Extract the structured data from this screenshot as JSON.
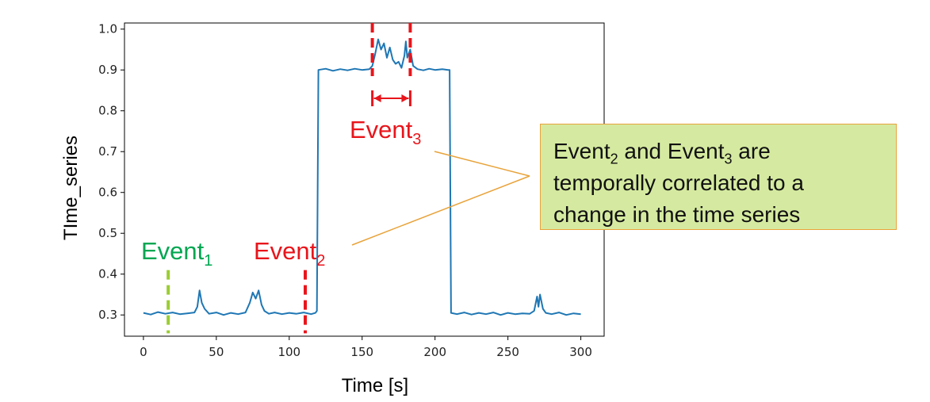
{
  "chart_data": {
    "type": "line",
    "xlabel": "Time [s]",
    "ylabel": "TIme_series",
    "xlim": [
      -13,
      316
    ],
    "ylim": [
      0.248,
      1.015
    ],
    "xticks": [
      0,
      50,
      100,
      150,
      200,
      250,
      300
    ],
    "yticks": [
      0.3,
      0.4,
      0.5,
      0.6,
      0.7,
      0.8,
      0.9,
      1.0
    ],
    "xtick_labels": [
      "0",
      "50",
      "100",
      "150",
      "200",
      "250",
      "300"
    ],
    "ytick_labels": [
      "0.3",
      "0.4",
      "0.5",
      "0.6",
      "0.7",
      "0.8",
      "0.9",
      "1.0"
    ],
    "series": [
      {
        "color": "#1f77b4",
        "points": [
          [
            0,
            0.305
          ],
          [
            5,
            0.301
          ],
          [
            10,
            0.307
          ],
          [
            15,
            0.303
          ],
          [
            20,
            0.306
          ],
          [
            25,
            0.302
          ],
          [
            30,
            0.304
          ],
          [
            35,
            0.306
          ],
          [
            37,
            0.32
          ],
          [
            38.5,
            0.36
          ],
          [
            40,
            0.33
          ],
          [
            42,
            0.315
          ],
          [
            45,
            0.303
          ],
          [
            50,
            0.306
          ],
          [
            55,
            0.3
          ],
          [
            60,
            0.305
          ],
          [
            65,
            0.302
          ],
          [
            70,
            0.306
          ],
          [
            73,
            0.33
          ],
          [
            75,
            0.355
          ],
          [
            77,
            0.34
          ],
          [
            79,
            0.36
          ],
          [
            81,
            0.325
          ],
          [
            83,
            0.31
          ],
          [
            86,
            0.303
          ],
          [
            90,
            0.306
          ],
          [
            95,
            0.302
          ],
          [
            100,
            0.305
          ],
          [
            105,
            0.303
          ],
          [
            110,
            0.306
          ],
          [
            115,
            0.302
          ],
          [
            118,
            0.305
          ],
          [
            119,
            0.31
          ],
          [
            120,
            0.9
          ],
          [
            125,
            0.903
          ],
          [
            130,
            0.898
          ],
          [
            135,
            0.902
          ],
          [
            140,
            0.899
          ],
          [
            145,
            0.903
          ],
          [
            150,
            0.9
          ],
          [
            155,
            0.902
          ],
          [
            157,
            0.91
          ],
          [
            159,
            0.94
          ],
          [
            161,
            0.975
          ],
          [
            163,
            0.95
          ],
          [
            165,
            0.965
          ],
          [
            167,
            0.93
          ],
          [
            169,
            0.955
          ],
          [
            171,
            0.925
          ],
          [
            173,
            0.915
          ],
          [
            175,
            0.92
          ],
          [
            177,
            0.905
          ],
          [
            179,
            0.935
          ],
          [
            180,
            0.97
          ],
          [
            181,
            0.93
          ],
          [
            183,
            0.95
          ],
          [
            185,
            0.91
          ],
          [
            188,
            0.902
          ],
          [
            192,
            0.899
          ],
          [
            196,
            0.903
          ],
          [
            200,
            0.9
          ],
          [
            205,
            0.902
          ],
          [
            209,
            0.9
          ],
          [
            210,
            0.9
          ],
          [
            211,
            0.305
          ],
          [
            215,
            0.302
          ],
          [
            220,
            0.306
          ],
          [
            225,
            0.301
          ],
          [
            230,
            0.305
          ],
          [
            235,
            0.302
          ],
          [
            240,
            0.306
          ],
          [
            245,
            0.3
          ],
          [
            250,
            0.305
          ],
          [
            255,
            0.302
          ],
          [
            260,
            0.304
          ],
          [
            265,
            0.303
          ],
          [
            268,
            0.31
          ],
          [
            270,
            0.345
          ],
          [
            271,
            0.32
          ],
          [
            272,
            0.35
          ],
          [
            274,
            0.315
          ],
          [
            276,
            0.305
          ],
          [
            280,
            0.302
          ],
          [
            285,
            0.306
          ],
          [
            290,
            0.3
          ],
          [
            295,
            0.304
          ],
          [
            300,
            0.302
          ]
        ]
      }
    ],
    "events": [
      {
        "name": "Event",
        "sub": "1",
        "x": 17,
        "y_from": 0.255,
        "y_to": 0.41,
        "color": "#9acd32",
        "label_color": "#00a651"
      },
      {
        "name": "Event",
        "sub": "2",
        "x": 111,
        "y_from": 0.255,
        "y_to": 0.41,
        "color": "#e8151b",
        "label_color": "#e8151b"
      },
      {
        "name": "Event",
        "sub": "3",
        "x": 157,
        "x2": 183,
        "y_from": 0.885,
        "y_to": 1.015,
        "color": "#e8151b",
        "label_color": "#e8151b"
      }
    ],
    "annotation": {
      "line1_a": "Event",
      "line1_sub_a": "2",
      "line1_b": " and Event",
      "line1_sub_b": "3",
      "line1_c": " are",
      "line2": "temporally correlated to a",
      "line3": "change in the time series",
      "fill": "#d5eaa0",
      "border": "#e8a33a"
    },
    "grid": false
  }
}
